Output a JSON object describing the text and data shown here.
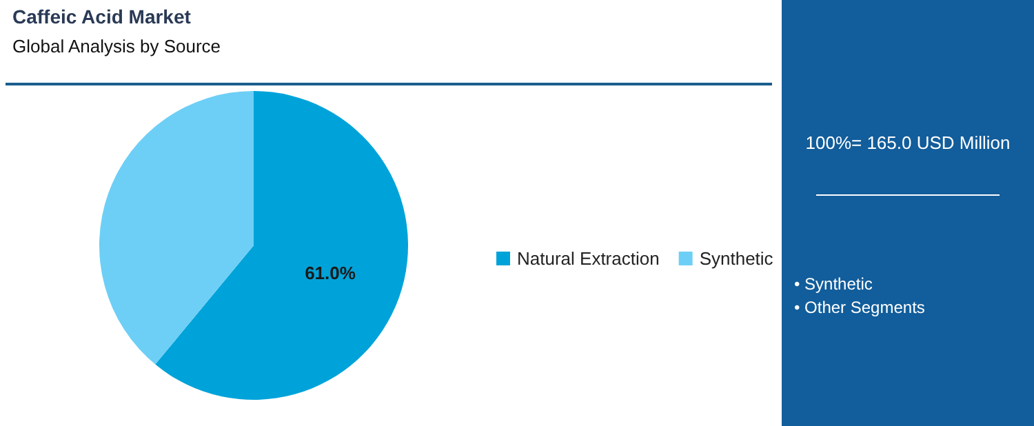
{
  "chart_data": {
    "type": "pie",
    "title": "Caffeic Acid Market",
    "subtitle": "Global Analysis by Source",
    "categories": [
      "Natural Extraction",
      "Synthetic"
    ],
    "values": [
      61,
      39
    ],
    "colors": [
      "#00a3d9",
      "#6dcff6"
    ],
    "value_labels": [
      "61.0%",
      null
    ],
    "legend": "right",
    "annotations": [
      "100%= 165.0 USD Million",
      "• Synthetic",
      "• Other Segments"
    ]
  }
}
